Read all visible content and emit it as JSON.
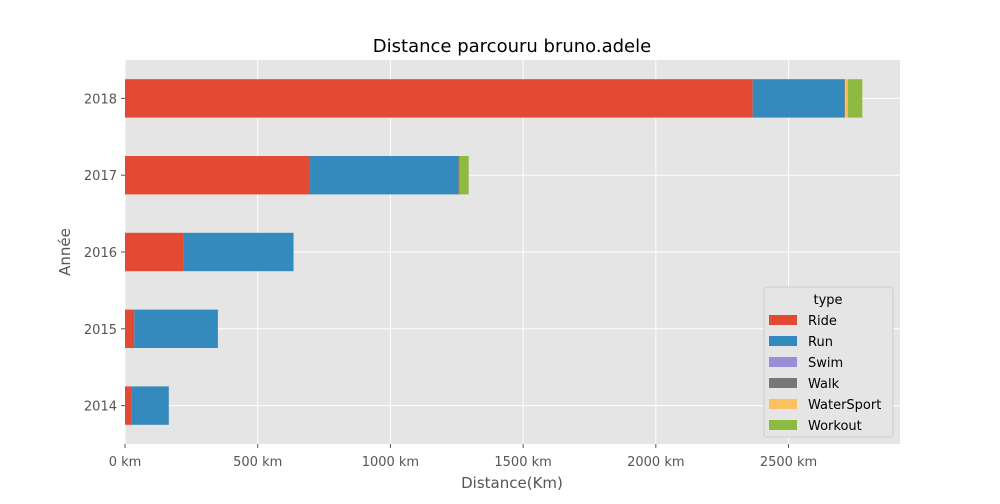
{
  "chart_data": {
    "type": "bar",
    "orientation": "horizontal",
    "stacked": true,
    "title": "Distance parcouru bruno.adele",
    "xlabel": "Distance(Km)",
    "ylabel": "Année",
    "xlim": [
      0,
      2920
    ],
    "x_ticks": [
      0,
      500,
      1000,
      1500,
      2000,
      2500
    ],
    "x_tick_labels": [
      "0 km",
      "500 km",
      "1000 km",
      "1500 km",
      "2000 km",
      "2500 km"
    ],
    "categories": [
      "2014",
      "2015",
      "2016",
      "2017",
      "2018"
    ],
    "series": [
      {
        "name": "Ride",
        "color": "#E24A33",
        "values": [
          25,
          35,
          220,
          695,
          2365
        ]
      },
      {
        "name": "Run",
        "color": "#348ABD",
        "values": [
          140,
          315,
          415,
          560,
          345
        ]
      },
      {
        "name": "Swim",
        "color": "#988ED5",
        "values": [
          0,
          0,
          0,
          0,
          0
        ]
      },
      {
        "name": "Walk",
        "color": "#777777",
        "values": [
          0,
          0,
          0,
          5,
          3
        ]
      },
      {
        "name": "WaterSport",
        "color": "#FBC15E",
        "values": [
          0,
          0,
          0,
          0,
          10
        ]
      },
      {
        "name": "Workout",
        "color": "#8EBA42",
        "values": [
          0,
          0,
          0,
          35,
          55
        ]
      }
    ],
    "legend": {
      "title": "type",
      "placement": "lower-right"
    },
    "grid": true,
    "background": "#E5E5E5"
  }
}
